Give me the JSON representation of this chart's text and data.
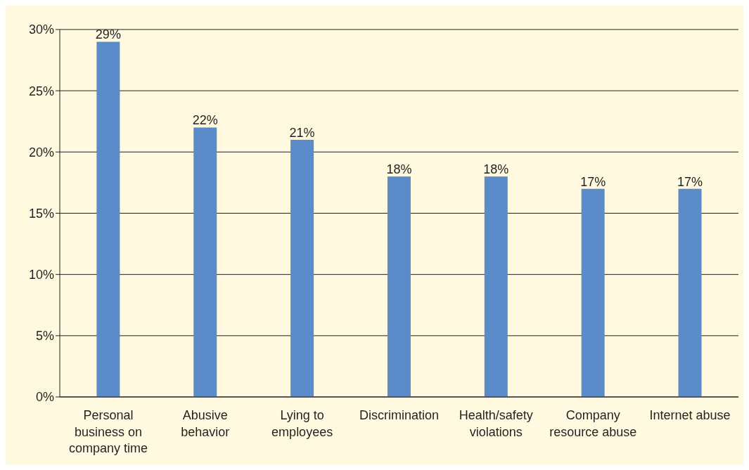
{
  "chart_data": {
    "type": "bar",
    "categories": [
      "Personal business on company time",
      "Abusive behavior",
      "Lying to employees",
      "Discrimination",
      "Health/safety violations",
      "Company resource abuse",
      "Internet abuse"
    ],
    "values": [
      29,
      22,
      21,
      18,
      18,
      17,
      17
    ],
    "value_labels": [
      "29%",
      "22%",
      "21%",
      "18%",
      "18%",
      "17%",
      "17%"
    ],
    "color": "#5b8bc9",
    "ylim": [
      0,
      30
    ],
    "yticks": [
      {
        "value": 0,
        "label": "0%"
      },
      {
        "value": 5,
        "label": "5%"
      },
      {
        "value": 10,
        "label": "10%"
      },
      {
        "value": 15,
        "label": "15%"
      },
      {
        "value": 20,
        "label": "20%"
      },
      {
        "value": 25,
        "label": "25%"
      },
      {
        "value": 30,
        "label": "30%"
      }
    ],
    "grid": "y"
  }
}
